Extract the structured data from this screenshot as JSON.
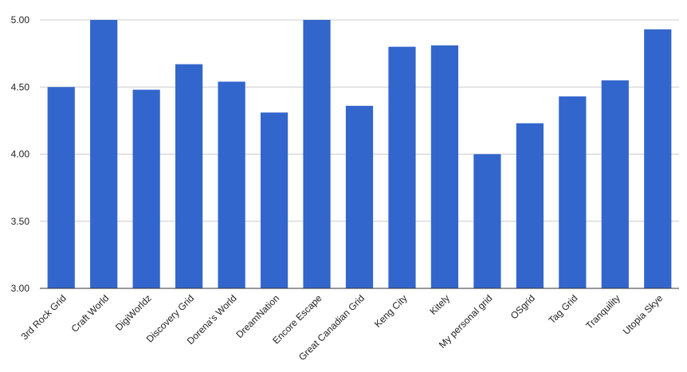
{
  "chart_data": {
    "type": "bar",
    "title": "",
    "xlabel": "",
    "ylabel": "",
    "categories": [
      "3rd Rock Grid",
      "Craft World",
      "DigiWorldz",
      "Discovery Grid",
      "Dorena's World",
      "DreamNation",
      "Encore Escape",
      "Great Canadian Grid",
      "Keng City",
      "Kitely",
      "My personal grid",
      "OSgrid",
      "Tag Grid",
      "Tranquility",
      "Utopia Skye"
    ],
    "values": [
      4.5,
      5.0,
      4.48,
      4.67,
      4.54,
      4.31,
      5.0,
      4.36,
      4.8,
      4.81,
      4.0,
      4.23,
      4.43,
      4.55,
      4.93
    ],
    "ylim": [
      3.0,
      5.0
    ],
    "yticks": [
      "3.00",
      "3.50",
      "4.00",
      "4.50",
      "5.00"
    ],
    "grid": true,
    "legend": "none",
    "colors": {
      "bar": "#3366cc",
      "grid": "#cccccc",
      "axis": "#333333"
    }
  }
}
